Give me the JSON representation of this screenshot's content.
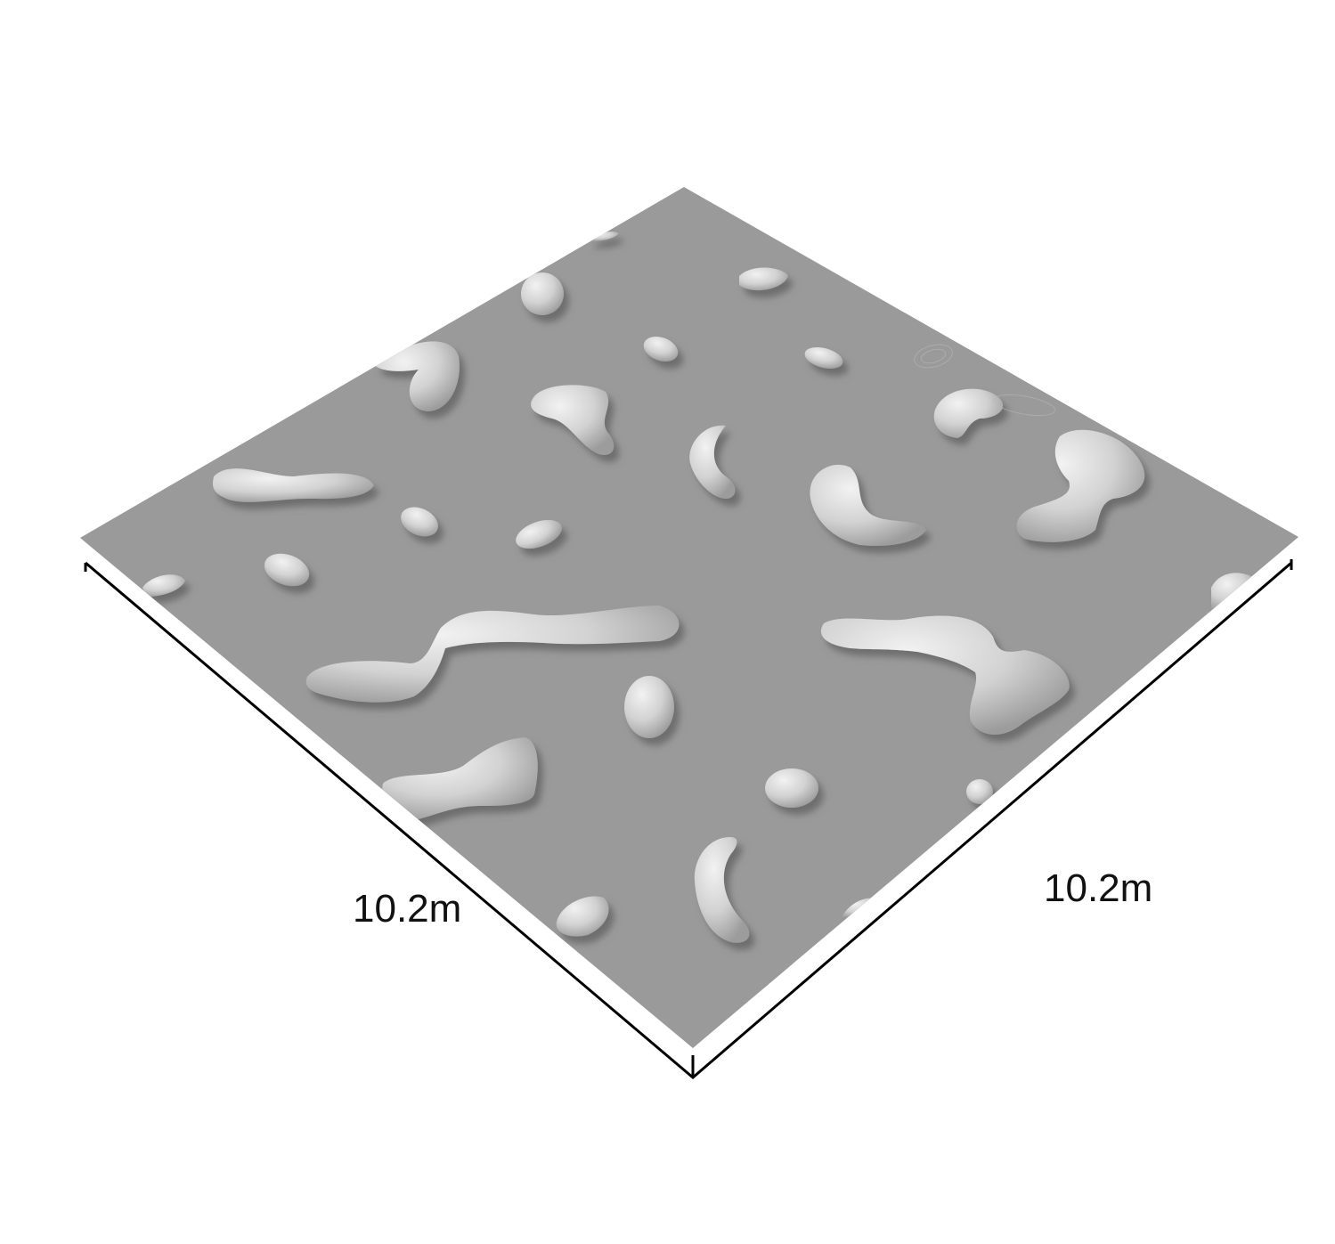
{
  "figure": {
    "labels": {
      "left_edge": "10.2m",
      "right_edge": "10.2m"
    },
    "colors": {
      "surface": "#9a9a9a",
      "blob_light": "#e6e6e6",
      "blob_mid": "#bdbdbd",
      "blob_shadow": "#6f6f6f",
      "frame": "#000000",
      "background": "#ffffff"
    }
  }
}
